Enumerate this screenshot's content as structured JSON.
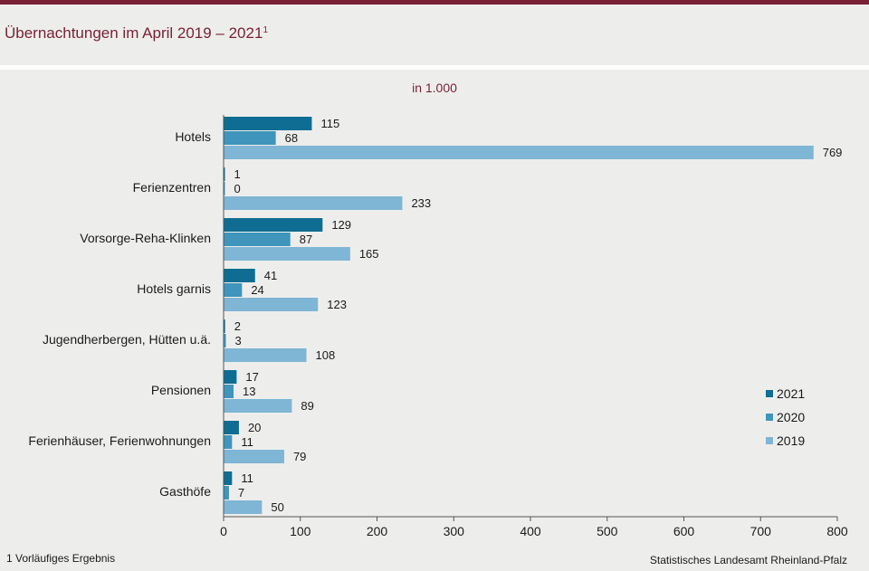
{
  "title": "Übernachtungen im April 2019 – 2021",
  "title_sup": "1",
  "unit_label": "in 1.000",
  "footnote": "1 Vorläufiges Ergebnis",
  "source": "Statistisches Landesamt Rheinland-Pfalz",
  "colors": {
    "accent": "#7a1f36",
    "s2021": "#0f6d93",
    "s2020": "#3f95bb",
    "s2019": "#7fb5d5"
  },
  "chart_data": {
    "type": "bar",
    "orientation": "horizontal",
    "categories": [
      "Hotels",
      "Ferienzentren",
      "Vorsorge-Reha-Klinken",
      "Hotels garnis",
      "Jugendherbergen, Hütten u.ä.",
      "Pensionen",
      "Ferienhäuser, Ferienwohnungen",
      "Gasthöfe"
    ],
    "series": [
      {
        "name": "2021",
        "values": [
          115,
          1,
          129,
          41,
          2,
          17,
          20,
          11
        ]
      },
      {
        "name": "2020",
        "values": [
          68,
          0,
          87,
          24,
          3,
          13,
          11,
          7
        ]
      },
      {
        "name": "2019",
        "values": [
          769,
          233,
          165,
          123,
          108,
          89,
          79,
          50
        ]
      }
    ],
    "xlim": [
      0,
      800
    ],
    "xticks": [
      0,
      100,
      200,
      300,
      400,
      500,
      600,
      700,
      800
    ],
    "grid": false,
    "legend_position": "right"
  }
}
